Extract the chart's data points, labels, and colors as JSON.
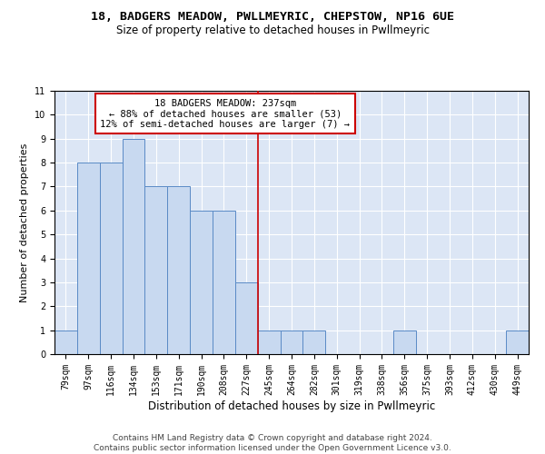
{
  "title1": "18, BADGERS MEADOW, PWLLMEYRIC, CHEPSTOW, NP16 6UE",
  "title2": "Size of property relative to detached houses in Pwllmeyric",
  "xlabel": "Distribution of detached houses by size in Pwllmeyric",
  "ylabel": "Number of detached properties",
  "categories": [
    "79sqm",
    "97sqm",
    "116sqm",
    "134sqm",
    "153sqm",
    "171sqm",
    "190sqm",
    "208sqm",
    "227sqm",
    "245sqm",
    "264sqm",
    "282sqm",
    "301sqm",
    "319sqm",
    "338sqm",
    "356sqm",
    "375sqm",
    "393sqm",
    "412sqm",
    "430sqm",
    "449sqm"
  ],
  "values": [
    1,
    8,
    8,
    9,
    7,
    7,
    6,
    6,
    3,
    1,
    1,
    1,
    0,
    0,
    0,
    1,
    0,
    0,
    0,
    0,
    1
  ],
  "bar_color": "#c8d9f0",
  "bar_edge_color": "#5a8ac6",
  "vline_x_index": 8.5,
  "vline_color": "#cc0000",
  "annotation_line1": "18 BADGERS MEADOW: 237sqm",
  "annotation_line2": "← 88% of detached houses are smaller (53)",
  "annotation_line3": "12% of semi-detached houses are larger (7) →",
  "ylim": [
    0,
    11
  ],
  "yticks": [
    0,
    1,
    2,
    3,
    4,
    5,
    6,
    7,
    8,
    9,
    10,
    11
  ],
  "background_color": "#dce6f5",
  "grid_color": "#ffffff",
  "footer1": "Contains HM Land Registry data © Crown copyright and database right 2024.",
  "footer2": "Contains public sector information licensed under the Open Government Licence v3.0.",
  "title1_fontsize": 9.5,
  "title2_fontsize": 8.5,
  "xlabel_fontsize": 8.5,
  "ylabel_fontsize": 8,
  "tick_fontsize": 7,
  "annot_fontsize": 7.5,
  "footer_fontsize": 6.5
}
